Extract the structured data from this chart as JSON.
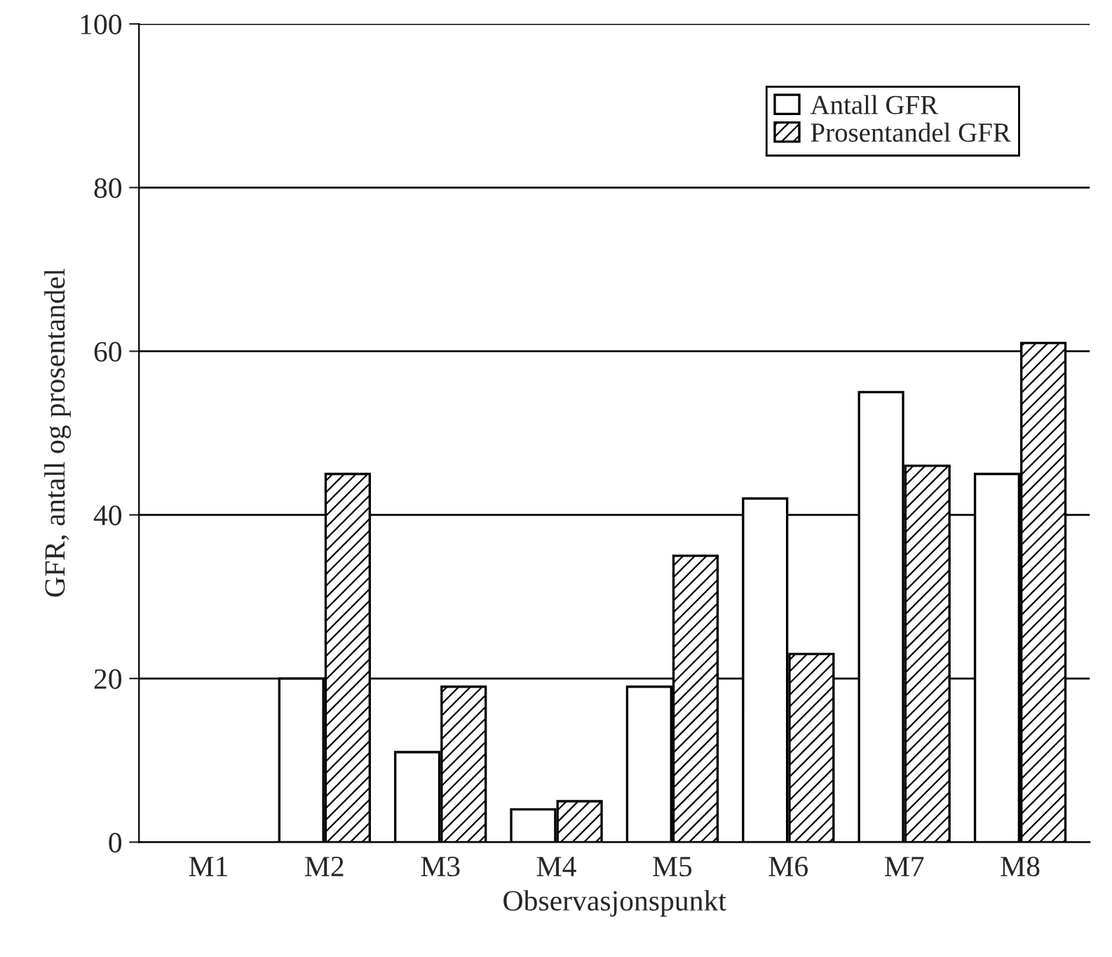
{
  "chart_data": {
    "type": "bar",
    "xlabel": "Observasjonspunkt",
    "ylabel": "GFR, antall og prosentandel",
    "categories": [
      "M1",
      "M2",
      "M3",
      "M4",
      "M5",
      "M6",
      "M7",
      "M8"
    ],
    "series": [
      {
        "name": "Antall GFR",
        "color": "#ffffff",
        "values": [
          null,
          20,
          11,
          4,
          19,
          42,
          55,
          45
        ]
      },
      {
        "name": "Prosentandel GFR",
        "color": "#000000",
        "values": [
          null,
          45,
          19,
          5,
          35,
          23,
          46,
          61
        ]
      }
    ],
    "ylim": [
      0,
      100
    ],
    "yticks": [
      0,
      20,
      40,
      60,
      80,
      100
    ],
    "grid": "y",
    "legend": "top right"
  }
}
